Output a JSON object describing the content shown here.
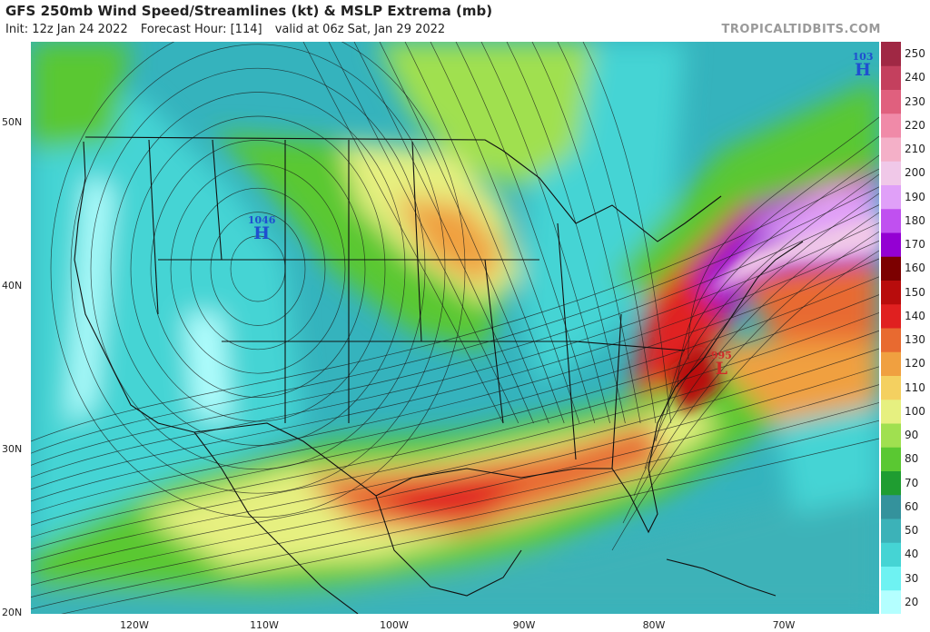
{
  "header": {
    "title": "GFS 250mb Wind Speed/Streamlines (kt) & MSLP Extrema (mb)",
    "init": "Init: 12z Jan 24 2022",
    "forecast_hour": "Forecast Hour: [114]",
    "valid": "valid at 06z Sat, Jan 29 2022",
    "source": "TROPICALTIDBITS.COM"
  },
  "axes": {
    "lat_labels": [
      {
        "text": "50N",
        "lat": 50
      },
      {
        "text": "40N",
        "lat": 40
      },
      {
        "text": "30N",
        "lat": 30
      },
      {
        "text": "20N",
        "lat": 20
      }
    ],
    "lon_labels": [
      {
        "text": "120W",
        "lon": -120
      },
      {
        "text": "110W",
        "lon": -110
      },
      {
        "text": "100W",
        "lon": -100
      },
      {
        "text": "90W",
        "lon": -90
      },
      {
        "text": "80W",
        "lon": -80
      },
      {
        "text": "70W",
        "lon": -70
      }
    ]
  },
  "colorbar": {
    "unit": "kt",
    "levels": [
      "20",
      "30",
      "40",
      "50",
      "60",
      "70",
      "80",
      "90",
      "100",
      "110",
      "120",
      "130",
      "140",
      "150",
      "160",
      "170",
      "180",
      "190",
      "200",
      "210",
      "220",
      "230",
      "240",
      "250"
    ],
    "colors": [
      "#b4ffff",
      "#6ef2f2",
      "#45d4d4",
      "#3cb2b8",
      "#34929c",
      "#1f9d31",
      "#5ac832",
      "#a0e050",
      "#e6f080",
      "#f4d060",
      "#f0a040",
      "#e86a30",
      "#e02020",
      "#b80c0c",
      "#7c0000",
      "#9400d3",
      "#c050f0",
      "#e0a0f8",
      "#f0c8e8",
      "#f4b0c8",
      "#f08aa8",
      "#e0607e",
      "#c4405e",
      "#a02844"
    ]
  },
  "pressure_centers": [
    {
      "type": "H",
      "value": "1046",
      "color": "#1f4fd0",
      "lat": 43.5,
      "lon": -110.2
    },
    {
      "type": "L",
      "value": "995",
      "color": "#d02828",
      "lat": 35.2,
      "lon": -74.8
    },
    {
      "type": "H",
      "value": "103",
      "color": "#1f4fd0",
      "lat": 53.5,
      "lon": -63.8
    }
  ]
}
